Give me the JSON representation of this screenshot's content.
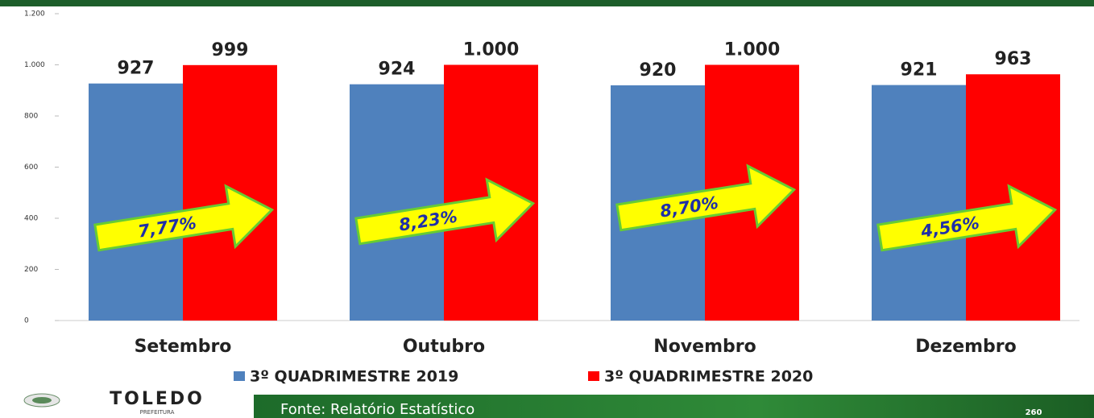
{
  "chart_data": {
    "type": "bar",
    "categories": [
      "Setembro",
      "Outubro",
      "Novembro",
      "Dezembro"
    ],
    "series": [
      {
        "name": "3º QUADRIMESTRE 2019",
        "color": "#4f81bd",
        "values": [
          927,
          924,
          920,
          921
        ],
        "value_labels": [
          "927",
          "924",
          "920",
          "921"
        ]
      },
      {
        "name": "3º QUADRIMESTRE 2020",
        "color": "#ff0000",
        "values": [
          999,
          1000,
          1000,
          963
        ],
        "value_labels": [
          "999",
          "1.000",
          "1.000",
          "963"
        ]
      }
    ],
    "ylim": [
      0,
      1200
    ],
    "yticks": [
      0,
      200,
      400,
      600,
      800,
      {
        "value": 1000,
        "label": "1.000"
      },
      {
        "value": 1200,
        "label": "1.200"
      }
    ],
    "grid": false,
    "legend": "bottom",
    "annotations": [
      "7,77%",
      "8,23%",
      "8,70%",
      "4,56%"
    ]
  },
  "footer": {
    "logo": "TOLEDO",
    "logo_sub": "PREFEITURA",
    "source": "Fonte: Relatório Estatístico",
    "page": "260"
  }
}
